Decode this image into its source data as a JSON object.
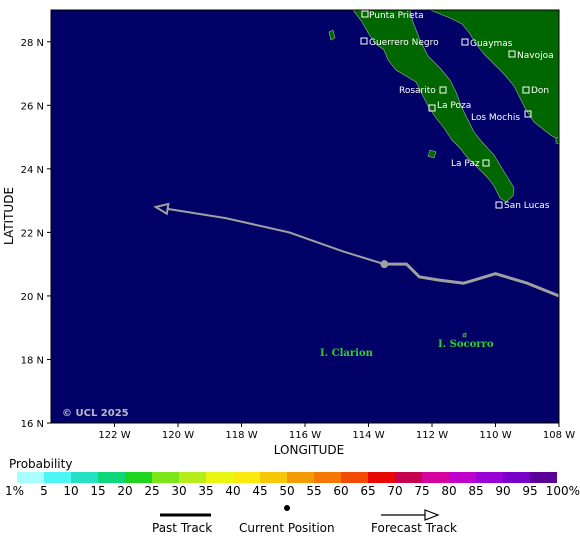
{
  "map": {
    "axes": {
      "xlabel": "LONGITUDE",
      "ylabel": "LATITUDE",
      "lon_ticks": [
        "122 W",
        "120 W",
        "118 W",
        "116 W",
        "114 W",
        "112 W",
        "110 W",
        "108 W"
      ],
      "lat_ticks": [
        "28 N",
        "26 N",
        "24 N",
        "22 N",
        "20 N",
        "18 N",
        "16 N"
      ]
    },
    "cities": [
      {
        "name": "Punta Prieta"
      },
      {
        "name": "Guerrero Negro"
      },
      {
        "name": "Guaymas"
      },
      {
        "name": "Navojoa"
      },
      {
        "name": "Rosarito"
      },
      {
        "name": "Don"
      },
      {
        "name": "La Poza"
      },
      {
        "name": "Los Mochis"
      },
      {
        "name": "La Paz"
      },
      {
        "name": "San Lucas"
      }
    ],
    "islands": [
      "I. Clarion",
      "I. Socorro"
    ],
    "copyright": "© UCL 2025",
    "colors": {
      "ocean": "#000066",
      "land": "#006600",
      "track": "#a0a0a0"
    },
    "track": {
      "current_position": {
        "lon": -113.5,
        "lat": 21.0
      },
      "past_track": [
        [
          -108.0,
          20.0
        ],
        [
          -109.0,
          20.4
        ],
        [
          -110.0,
          20.7
        ],
        [
          -111.0,
          20.4
        ],
        [
          -111.8,
          20.5
        ],
        [
          -112.4,
          20.6
        ],
        [
          -112.8,
          21.0
        ],
        [
          -113.5,
          21.0
        ]
      ],
      "forecast_track": [
        [
          -113.5,
          21.0
        ],
        [
          -114.8,
          21.4
        ],
        [
          -116.5,
          22.0
        ],
        [
          -118.5,
          22.45
        ],
        [
          -120.7,
          22.8
        ]
      ]
    }
  },
  "legend": {
    "probability_title": "Probability",
    "labels": [
      "1%",
      "5",
      "10",
      "15",
      "20",
      "25",
      "30",
      "35",
      "40",
      "45",
      "50",
      "55",
      "60",
      "65",
      "70",
      "75",
      "80",
      "85",
      "90",
      "95",
      "100%"
    ],
    "colors": [
      "#a7ffff",
      "#4df5f5",
      "#26e0c2",
      "#0ed67a",
      "#1fd41f",
      "#7de61a",
      "#b5ee1c",
      "#e9f60f",
      "#fbea0d",
      "#f7c708",
      "#f39b05",
      "#f57806",
      "#f34b05",
      "#e90803",
      "#c4004f",
      "#d5009e",
      "#c000cb",
      "#9a00d6",
      "#7900c8",
      "#5a0096"
    ],
    "past_track_label": "Past Track",
    "current_position_label": "Current Position",
    "forecast_track_label": "Forecast Track"
  }
}
